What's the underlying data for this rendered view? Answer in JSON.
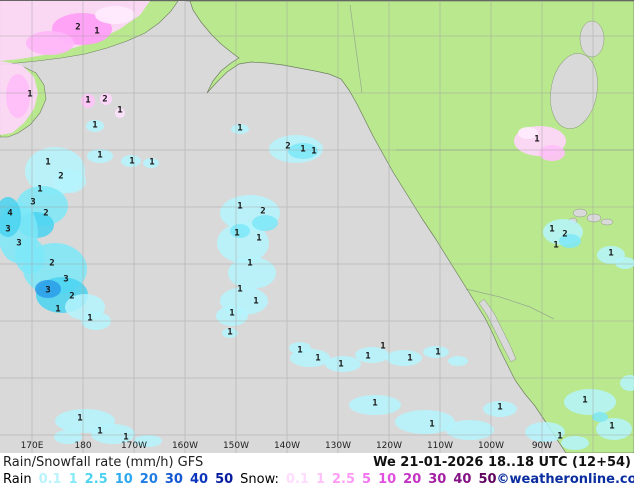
{
  "footer": {
    "product_label": "Rain/Snowfall rate (mm/h) GFS",
    "valid_time": "We 21-01-2026 18..18 UTC (12+54)",
    "rain_label": "Rain",
    "snow_label": "Snow:",
    "copyright": "©weatheronline.co.uk",
    "rain_scale": [
      {
        "value": "0.1",
        "color": "#b9f3fb"
      },
      {
        "value": "1",
        "color": "#86e9f7"
      },
      {
        "value": "2.5",
        "color": "#4ed4f0"
      },
      {
        "value": "10",
        "color": "#2fa8ef"
      },
      {
        "value": "20",
        "color": "#1f7de4"
      },
      {
        "value": "30",
        "color": "#1457d0"
      },
      {
        "value": "40",
        "color": "#0b36bb"
      },
      {
        "value": "50",
        "color": "#061c9e"
      }
    ],
    "snow_scale": [
      {
        "value": "0.1",
        "color": "#ffdcfd"
      },
      {
        "value": "1",
        "color": "#ffc3fa"
      },
      {
        "value": "2.5",
        "color": "#ff9df6"
      },
      {
        "value": "5",
        "color": "#f473ee"
      },
      {
        "value": "10",
        "color": "#e250e2"
      },
      {
        "value": "20",
        "color": "#c433c4"
      },
      {
        "value": "30",
        "color": "#a421a4"
      },
      {
        "value": "40",
        "color": "#841284"
      },
      {
        "value": "50",
        "color": "#5f045f"
      }
    ]
  },
  "map": {
    "colors": {
      "ocean": "#d9d9d9",
      "land": "#b9e88e",
      "rain_light": "#b4f4fd",
      "rain_heavy": "#2b9ce9",
      "snow_light": "#ffd6fc",
      "grid": "#b0b0b0"
    },
    "lon_labels": [
      [
        "170E",
        32
      ],
      [
        "180",
        83
      ],
      [
        "170W",
        134
      ],
      [
        "160W",
        185
      ],
      [
        "150W",
        236
      ],
      [
        "140W",
        287
      ],
      [
        "130W",
        338
      ],
      [
        "120W",
        389
      ],
      [
        "110W",
        440
      ],
      [
        "100W",
        491
      ],
      [
        "90W",
        542
      ]
    ],
    "values": [
      [
        78,
        27,
        "2"
      ],
      [
        97,
        31,
        "1"
      ],
      [
        30,
        94,
        "1"
      ],
      [
        88,
        100,
        "1"
      ],
      [
        105,
        99,
        "2"
      ],
      [
        120,
        110,
        "1"
      ],
      [
        100,
        155,
        "1"
      ],
      [
        132,
        161,
        "1"
      ],
      [
        152,
        162,
        "1"
      ],
      [
        95,
        125,
        "1"
      ],
      [
        48,
        162,
        "1"
      ],
      [
        61,
        176,
        "2"
      ],
      [
        40,
        189,
        "1"
      ],
      [
        33,
        202,
        "3"
      ],
      [
        46,
        213,
        "2"
      ],
      [
        10,
        213,
        "4"
      ],
      [
        8,
        229,
        "3"
      ],
      [
        19,
        243,
        "3"
      ],
      [
        52,
        263,
        "2"
      ],
      [
        66,
        279,
        "3"
      ],
      [
        48,
        290,
        "3"
      ],
      [
        72,
        296,
        "2"
      ],
      [
        58,
        309,
        "1"
      ],
      [
        90,
        318,
        "1"
      ],
      [
        288,
        146,
        "2"
      ],
      [
        303,
        149,
        "1"
      ],
      [
        314,
        151,
        "1"
      ],
      [
        240,
        128,
        "1"
      ],
      [
        240,
        206,
        "1"
      ],
      [
        263,
        211,
        "2"
      ],
      [
        237,
        233,
        "1"
      ],
      [
        259,
        238,
        "1"
      ],
      [
        250,
        263,
        "1"
      ],
      [
        240,
        289,
        "1"
      ],
      [
        256,
        301,
        "1"
      ],
      [
        232,
        313,
        "1"
      ],
      [
        230,
        332,
        "1"
      ],
      [
        537,
        139,
        "1"
      ],
      [
        552,
        229,
        "1"
      ],
      [
        565,
        234,
        "2"
      ],
      [
        556,
        245,
        "1"
      ],
      [
        611,
        253,
        "1"
      ],
      [
        300,
        350,
        "1"
      ],
      [
        318,
        358,
        "1"
      ],
      [
        341,
        364,
        "1"
      ],
      [
        368,
        356,
        "1"
      ],
      [
        383,
        346,
        "1"
      ],
      [
        410,
        358,
        "1"
      ],
      [
        438,
        352,
        "1"
      ],
      [
        80,
        418,
        "1"
      ],
      [
        100,
        431,
        "1"
      ],
      [
        126,
        437,
        "1"
      ],
      [
        375,
        403,
        "1"
      ],
      [
        432,
        424,
        "1"
      ],
      [
        500,
        407,
        "1"
      ],
      [
        585,
        400,
        "1"
      ],
      [
        612,
        426,
        "1"
      ],
      [
        560,
        436,
        "1"
      ]
    ]
  }
}
